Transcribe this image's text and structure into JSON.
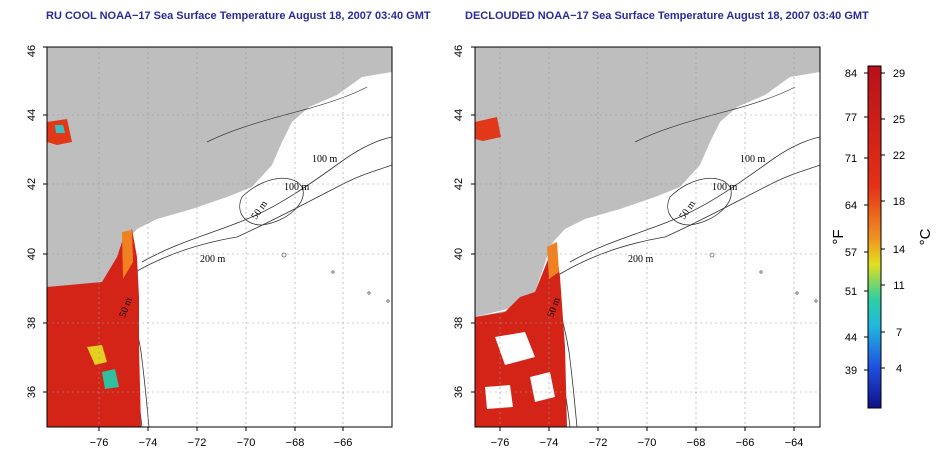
{
  "panels": [
    {
      "title": "RU COOL NOAA−17 Sea Surface Temperature August 18, 2007 03:40 GMT",
      "contour_labels": [
        "100 m",
        "100 m",
        "50 m",
        "200 m",
        "50 m"
      ]
    },
    {
      "title": "DECLOUDED NOAA−17 Sea Surface Temperature August 18, 2007 03:40 GMT",
      "contour_labels": [
        "100 m",
        "100 m",
        "50 m",
        "200 m",
        "50 m"
      ]
    }
  ],
  "axes": {
    "x_ticks": [
      "−76",
      "−74",
      "−72",
      "−70",
      "−68",
      "−66",
      "−64"
    ],
    "y_ticks": [
      "36",
      "38",
      "40",
      "42",
      "44",
      "46"
    ],
    "lon_range": [
      -77,
      -63
    ],
    "lat_range": [
      35,
      46
    ]
  },
  "colorbar": {
    "f_ticks": [
      "84",
      "77",
      "71",
      "64",
      "57",
      "51",
      "44",
      "39"
    ],
    "c_ticks": [
      "29",
      "25",
      "22",
      "18",
      "14",
      "11",
      "7",
      "4"
    ],
    "f_unit": "°F",
    "c_unit": "°C",
    "colors": [
      "#e8101a",
      "#f0a020",
      "#e8e020",
      "#20c8d8",
      "#2060e8",
      "#1a10c0"
    ]
  },
  "colors": {
    "land": "#bebebe",
    "warm_water": "#d42418",
    "grid": "#9a9a9a"
  }
}
